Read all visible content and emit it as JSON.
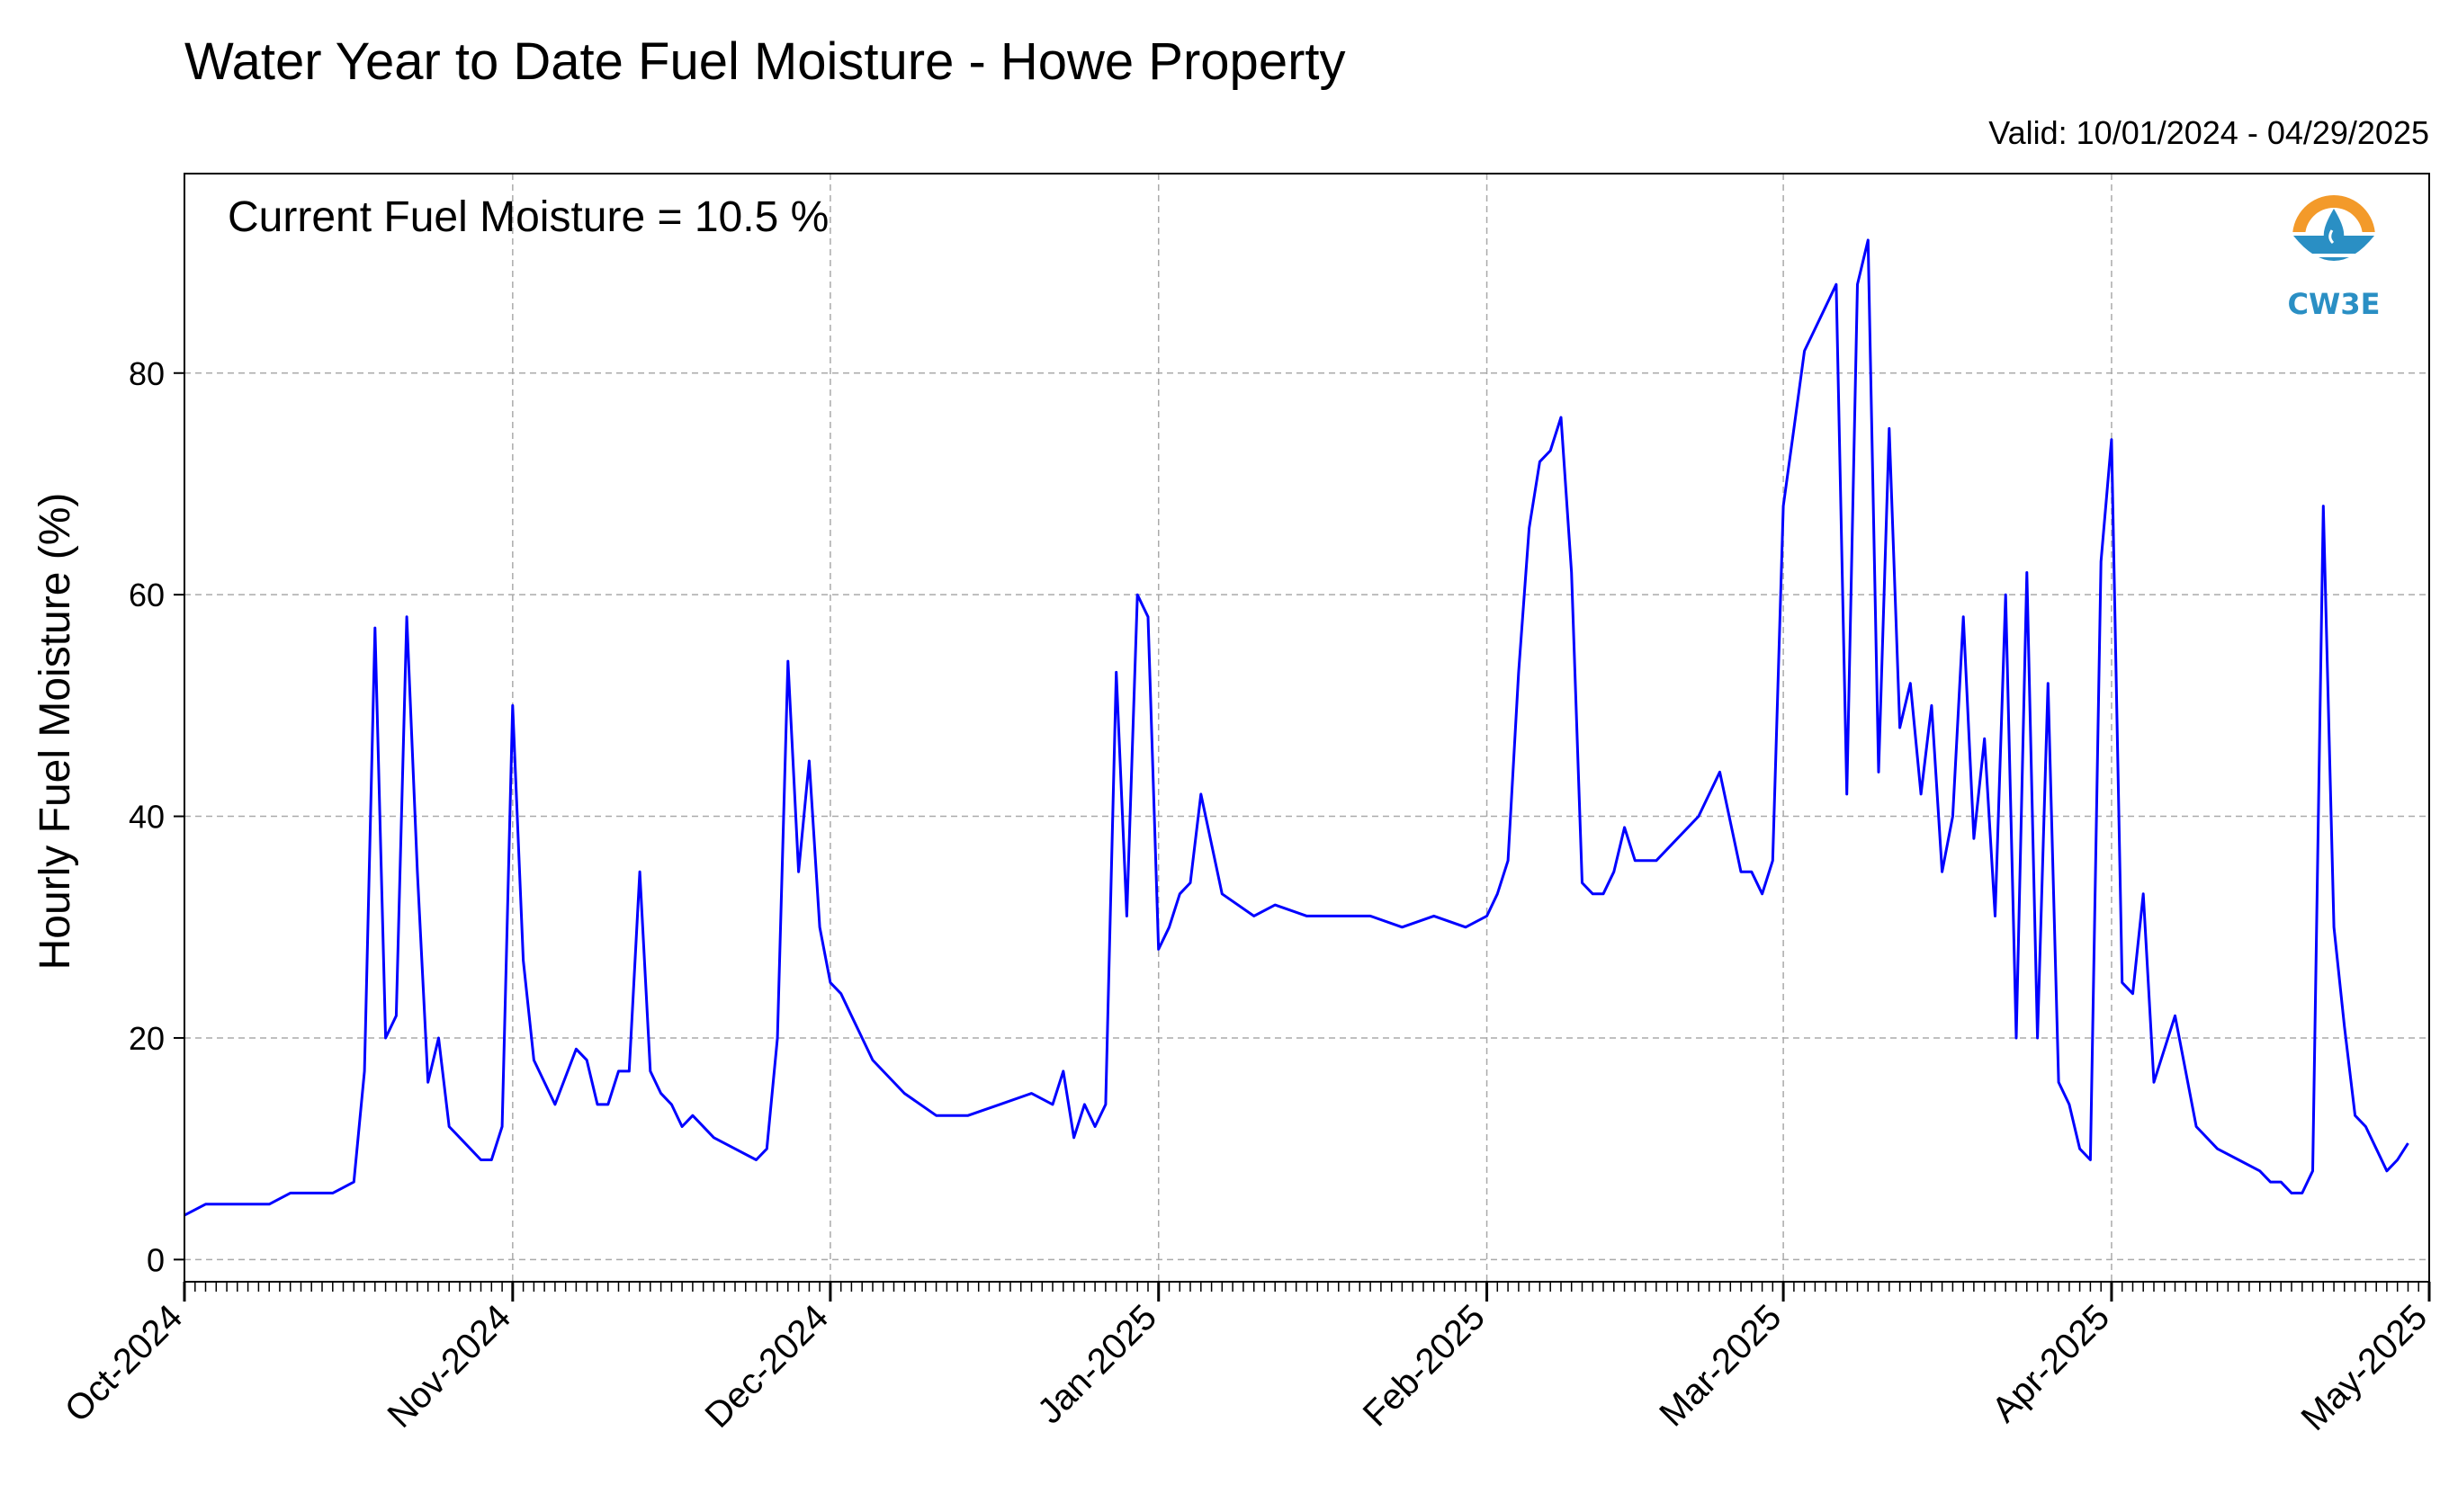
{
  "page": {
    "title": "Water Year to Date Fuel Moisture - Howe Property",
    "valid_text": "Valid: 10/01/2024 - 04/29/2025",
    "annotation": "Current Fuel Moisture = 10.5 %",
    "logo_text": "CW3E"
  },
  "colors": {
    "series": "#0000ff",
    "grid": "#aaaaaa",
    "logo_orange": "#f39a2a",
    "logo_blue": "#2a8fc4"
  },
  "icons": {
    "logo": "cw3e-water-drop-logo"
  },
  "chart_data": {
    "type": "line",
    "title": "Water Year to Date Fuel Moisture - Howe Property",
    "xlabel": "",
    "ylabel": "Hourly Fuel Moisture (%)",
    "xlim": [
      "2024-10-01",
      "2025-05-01"
    ],
    "ylim": [
      -2,
      98
    ],
    "yticks": [
      0,
      20,
      40,
      60,
      80
    ],
    "xticks": [
      {
        "date": "2024-10-01",
        "label": "Oct-2024"
      },
      {
        "date": "2024-11-01",
        "label": "Nov-2024"
      },
      {
        "date": "2024-12-01",
        "label": "Dec-2024"
      },
      {
        "date": "2025-01-01",
        "label": "Jan-2025"
      },
      {
        "date": "2025-02-01",
        "label": "Feb-2025"
      },
      {
        "date": "2025-03-01",
        "label": "Mar-2025"
      },
      {
        "date": "2025-04-01",
        "label": "Apr-2025"
      },
      {
        "date": "2025-05-01",
        "label": "May-2025"
      }
    ],
    "grid": true,
    "series": [
      {
        "name": "",
        "x": [
          "2024-10-01",
          "2024-10-03",
          "2024-10-05",
          "2024-10-07",
          "2024-10-09",
          "2024-10-11",
          "2024-10-13",
          "2024-10-15",
          "2024-10-17",
          "2024-10-18",
          "2024-10-19",
          "2024-10-20",
          "2024-10-21",
          "2024-10-22",
          "2024-10-23",
          "2024-10-24",
          "2024-10-25",
          "2024-10-26",
          "2024-10-27",
          "2024-10-28",
          "2024-10-29",
          "2024-10-30",
          "2024-10-31",
          "2024-11-01",
          "2024-11-02",
          "2024-11-03",
          "2024-11-05",
          "2024-11-07",
          "2024-11-08",
          "2024-11-09",
          "2024-11-10",
          "2024-11-11",
          "2024-11-12",
          "2024-11-13",
          "2024-11-14",
          "2024-11-15",
          "2024-11-16",
          "2024-11-17",
          "2024-11-18",
          "2024-11-20",
          "2024-11-22",
          "2024-11-24",
          "2024-11-25",
          "2024-11-26",
          "2024-11-27",
          "2024-11-28",
          "2024-11-29",
          "2024-11-30",
          "2024-12-01",
          "2024-12-02",
          "2024-12-03",
          "2024-12-05",
          "2024-12-08",
          "2024-12-11",
          "2024-12-14",
          "2024-12-17",
          "2024-12-20",
          "2024-12-22",
          "2024-12-23",
          "2024-12-24",
          "2024-12-25",
          "2024-12-26",
          "2024-12-27",
          "2024-12-28",
          "2024-12-29",
          "2024-12-30",
          "2024-12-31",
          "2025-01-01",
          "2025-01-02",
          "2025-01-03",
          "2025-01-04",
          "2025-01-05",
          "2025-01-07",
          "2025-01-10",
          "2025-01-12",
          "2025-01-15",
          "2025-01-18",
          "2025-01-21",
          "2025-01-24",
          "2025-01-27",
          "2025-01-30",
          "2025-02-01",
          "2025-02-02",
          "2025-02-03",
          "2025-02-04",
          "2025-02-05",
          "2025-02-06",
          "2025-02-07",
          "2025-02-08",
          "2025-02-09",
          "2025-02-10",
          "2025-02-11",
          "2025-02-12",
          "2025-02-13",
          "2025-02-14",
          "2025-02-15",
          "2025-02-17",
          "2025-02-19",
          "2025-02-21",
          "2025-02-23",
          "2025-02-25",
          "2025-02-26",
          "2025-02-27",
          "2025-02-28",
          "2025-03-01",
          "2025-03-02",
          "2025-03-03",
          "2025-03-04",
          "2025-03-05",
          "2025-03-06",
          "2025-03-07",
          "2025-03-08",
          "2025-03-09",
          "2025-03-10",
          "2025-03-11",
          "2025-03-12",
          "2025-03-13",
          "2025-03-14",
          "2025-03-15",
          "2025-03-16",
          "2025-03-17",
          "2025-03-18",
          "2025-03-19",
          "2025-03-20",
          "2025-03-21",
          "2025-03-22",
          "2025-03-23",
          "2025-03-24",
          "2025-03-25",
          "2025-03-26",
          "2025-03-27",
          "2025-03-28",
          "2025-03-29",
          "2025-03-30",
          "2025-03-31",
          "2025-04-01",
          "2025-04-02",
          "2025-04-03",
          "2025-04-04",
          "2025-04-05",
          "2025-04-07",
          "2025-04-09",
          "2025-04-11",
          "2025-04-13",
          "2025-04-15",
          "2025-04-16",
          "2025-04-17",
          "2025-04-18",
          "2025-04-19",
          "2025-04-20",
          "2025-04-21",
          "2025-04-22",
          "2025-04-23",
          "2025-04-24",
          "2025-04-25",
          "2025-04-26",
          "2025-04-27",
          "2025-04-28",
          "2025-04-29"
        ],
        "y": [
          4,
          5,
          5,
          5,
          5,
          6,
          6,
          6,
          7,
          17,
          57,
          20,
          22,
          58,
          35,
          16,
          20,
          12,
          11,
          10,
          9,
          9,
          12,
          50,
          27,
          18,
          14,
          19,
          18,
          14,
          14,
          17,
          17,
          35,
          17,
          15,
          14,
          12,
          13,
          11,
          10,
          9,
          10,
          20,
          54,
          35,
          45,
          30,
          25,
          24,
          22,
          18,
          15,
          13,
          13,
          14,
          15,
          14,
          17,
          11,
          14,
          12,
          14,
          53,
          31,
          60,
          58,
          28,
          30,
          33,
          34,
          42,
          33,
          31,
          32,
          31,
          31,
          31,
          30,
          31,
          30,
          31,
          33,
          36,
          53,
          66,
          72,
          73,
          76,
          62,
          34,
          33,
          33,
          35,
          39,
          36,
          36,
          38,
          40,
          44,
          35,
          35,
          33,
          36,
          68,
          75,
          82,
          84,
          86,
          88,
          42,
          88,
          92,
          44,
          75,
          48,
          52,
          42,
          50,
          35,
          40,
          58,
          38,
          47,
          31,
          60,
          20,
          62,
          20,
          52,
          16,
          14,
          10,
          9,
          63,
          74,
          25,
          24,
          33,
          16,
          22,
          12,
          10,
          9,
          8,
          7,
          7,
          6,
          6,
          8,
          68,
          30,
          21,
          13,
          12,
          10,
          8,
          9,
          10.5
        ]
      }
    ]
  }
}
